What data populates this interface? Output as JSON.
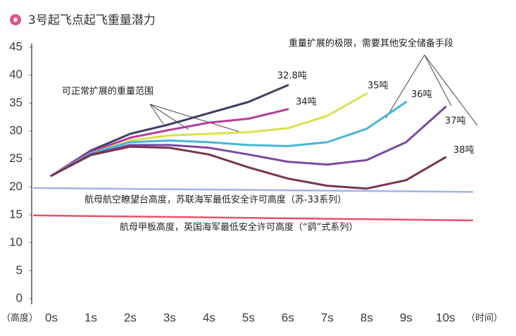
{
  "chart_data": {
    "type": "line",
    "title": "3号起飞点起飞重量潜力",
    "y_label": "（高度）",
    "x_label": "（时间）",
    "xlim": [
      -0.5,
      11.2
    ],
    "ylim": [
      0,
      45
    ],
    "xticks": [
      {
        "value": 0,
        "label": "0s"
      },
      {
        "value": 1,
        "label": "1s"
      },
      {
        "value": 2,
        "label": "2s"
      },
      {
        "value": 3,
        "label": "3s"
      },
      {
        "value": 4,
        "label": "4s"
      },
      {
        "value": 5,
        "label": "5s"
      },
      {
        "value": 6,
        "label": "6s"
      },
      {
        "value": 7,
        "label": "7s"
      },
      {
        "value": 8,
        "label": "8s"
      },
      {
        "value": 9,
        "label": "9s"
      },
      {
        "value": 10,
        "label": "10s"
      }
    ],
    "yticks": [
      0,
      5,
      10,
      15,
      20,
      25,
      30,
      35,
      40,
      45
    ],
    "x": [
      0,
      1,
      2,
      3,
      4,
      5,
      6,
      7,
      8,
      9,
      10
    ],
    "series": [
      {
        "name": "32.8吨",
        "color": "#3b3f66",
        "values": [
          22,
          26.5,
          29.5,
          31.2,
          33.2,
          35.2,
          38.2,
          null,
          null,
          null,
          null
        ]
      },
      {
        "name": "34吨",
        "color": "#b83a9e",
        "values": [
          22,
          26.3,
          28.8,
          30.2,
          31.5,
          32.2,
          33.9,
          null,
          null,
          null,
          null
        ]
      },
      {
        "name": "35吨",
        "color": "#d9e14c",
        "values": [
          22,
          26,
          28.3,
          29.2,
          29.5,
          29.8,
          30.5,
          32.7,
          36.7,
          null,
          null
        ]
      },
      {
        "name": "36吨",
        "color": "#47b5d9",
        "values": [
          22,
          26,
          28,
          28.3,
          28,
          27.5,
          27.3,
          28,
          30.4,
          35.2,
          null
        ]
      },
      {
        "name": "37吨",
        "color": "#7b4a9e",
        "values": [
          22,
          25.8,
          27.5,
          27.5,
          27,
          25.8,
          24.5,
          24,
          24.8,
          28,
          34.3
        ]
      },
      {
        "name": "38吨",
        "color": "#7a3450",
        "values": [
          22,
          25.7,
          27.2,
          27,
          25.8,
          23.5,
          21.5,
          20.2,
          19.7,
          21.2,
          25.3
        ]
      }
    ],
    "reference_lines": [
      {
        "label": "航母航空瞭望台高度，苏联海军最低安全许可高度（苏-33系列）",
        "color": "#9fb4ea",
        "start": 19.8,
        "end": 19.1
      },
      {
        "label": "航母甲板高度，英国海军最低安全许可高度（“鹞”式系列）",
        "color": "#e8506a",
        "start": 14.9,
        "end": 14
      }
    ],
    "annotations": [
      "可正常扩展的重量范围",
      "重量扩展的极限，需要其他安全储备手段"
    ]
  }
}
